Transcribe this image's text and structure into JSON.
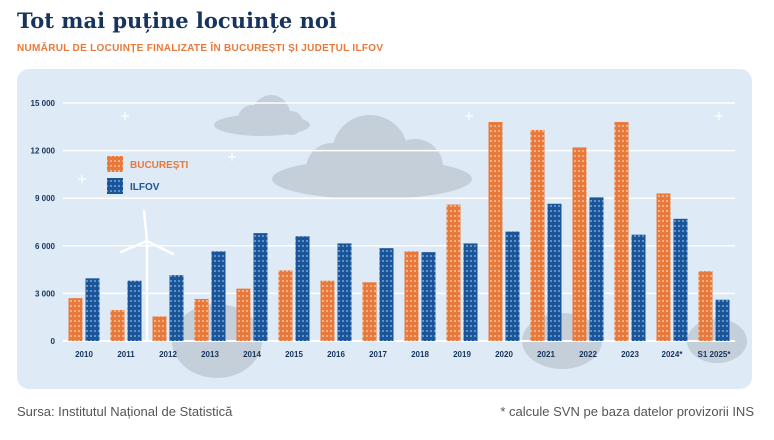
{
  "title": "Tot mai puține locuințe noi",
  "subtitle": "NUMĂRUL DE LOCUINȚE FINALIZATE ÎN BUCUREȘTI ȘI JUDEȚUL ILFOV",
  "source": "Sursa: Institutul Național de Statistică",
  "note": "* calcule SVN pe baza datelor provizorii INS",
  "colors": {
    "bucuresti": "#e8793a",
    "ilfov": "#1b5597",
    "panel": "#deeaf5",
    "axis_text": "#17345c"
  },
  "chart_data": {
    "type": "bar",
    "categories": [
      "2010",
      "2011",
      "2012",
      "2013",
      "2014",
      "2015",
      "2016",
      "2017",
      "2018",
      "2019",
      "2020",
      "2021",
      "2022",
      "2023",
      "2024*",
      "S1 2025*"
    ],
    "series": [
      {
        "name": "BUCUREȘTI",
        "values": [
          2700,
          1950,
          1550,
          2650,
          3300,
          4450,
          3800,
          3700,
          5650,
          8600,
          13800,
          13300,
          12200,
          13800,
          9300,
          4400
        ]
      },
      {
        "name": "ILFOV",
        "values": [
          3950,
          3800,
          4150,
          5650,
          6800,
          6600,
          6150,
          5850,
          5600,
          6150,
          6900,
          8650,
          9050,
          6700,
          7700,
          2600
        ]
      }
    ],
    "yticks": [
      "0",
      "3 000",
      "6 000",
      "9 000",
      "12 000",
      "15 000"
    ],
    "ylim": [
      0,
      15000
    ],
    "legend_position": "top-left",
    "grid": true
  }
}
